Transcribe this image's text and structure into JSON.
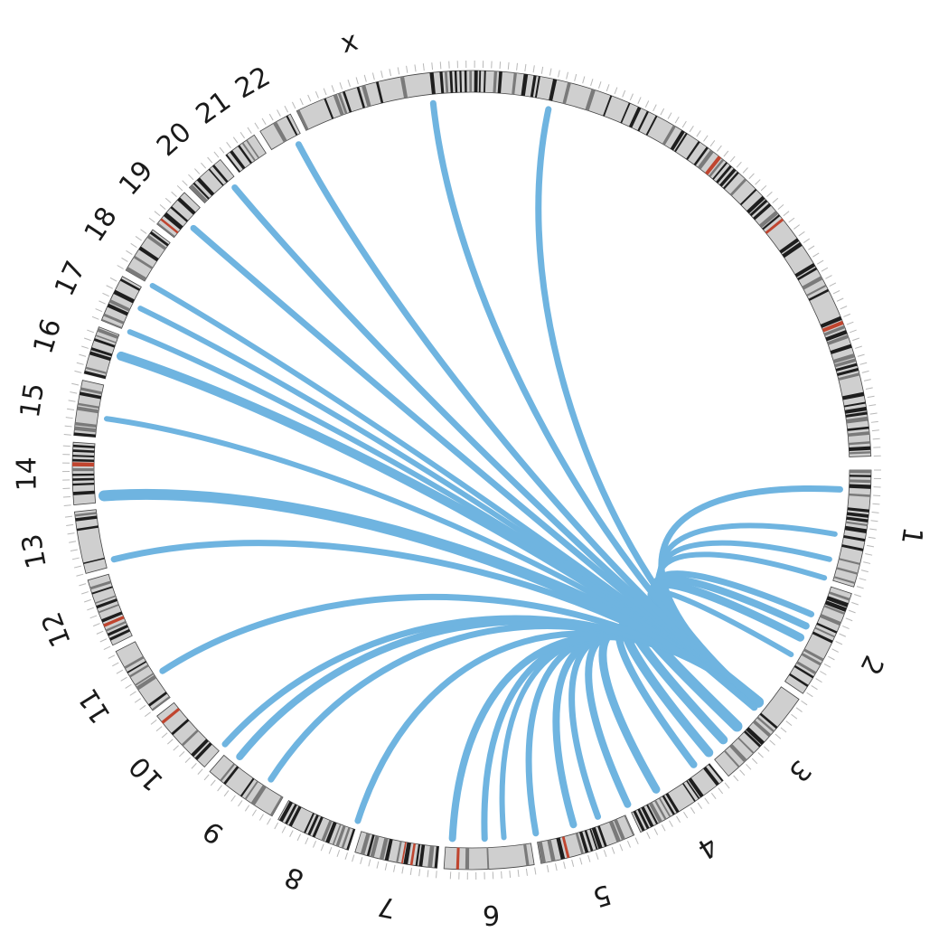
{
  "chart_data": {
    "type": "chord",
    "ring_order": [
      "1",
      "2",
      "3",
      "4",
      "5",
      "6",
      "7",
      "8",
      "9",
      "10",
      "11",
      "12",
      "13",
      "14",
      "15",
      "16",
      "17",
      "18",
      "19",
      "20",
      "21",
      "22",
      "x"
    ],
    "chromosomes": [
      {
        "label": "1",
        "start": 90,
        "end": 107
      },
      {
        "label": "2",
        "start": 108,
        "end": 124
      },
      {
        "label": "3",
        "start": 125,
        "end": 140
      },
      {
        "label": "4",
        "start": 141,
        "end": 155
      },
      {
        "label": "5",
        "start": 156,
        "end": 170
      },
      {
        "label": "6",
        "start": 171,
        "end": 184
      },
      {
        "label": "7",
        "start": 185,
        "end": 197
      },
      {
        "label": "8",
        "start": 198,
        "end": 209
      },
      {
        "label": "9",
        "start": 210,
        "end": 221
      },
      {
        "label": "10",
        "start": 222,
        "end": 232
      },
      {
        "label": "11",
        "start": 233,
        "end": 243
      },
      {
        "label": "12",
        "start": 244,
        "end": 254
      },
      {
        "label": "13",
        "start": 255,
        "end": 264
      },
      {
        "label": "14",
        "start": 265,
        "end": 274
      },
      {
        "label": "15",
        "start": 275,
        "end": 283
      },
      {
        "label": "16",
        "start": 284,
        "end": 291
      },
      {
        "label": "17",
        "start": 292,
        "end": 299
      },
      {
        "label": "18",
        "start": 300,
        "end": 307
      },
      {
        "label": "19",
        "start": 308,
        "end": 314
      },
      {
        "label": "20",
        "start": 315,
        "end": 321
      },
      {
        "label": "21",
        "start": 322,
        "end": 327
      },
      {
        "label": "22",
        "start": 328,
        "end": 333
      },
      {
        "label": "x",
        "start": 334,
        "end": 448
      }
    ],
    "hub_angle": 129,
    "links": [
      {
        "to": 93,
        "w": 7
      },
      {
        "to": 100,
        "w": 6
      },
      {
        "to": 104,
        "w": 6
      },
      {
        "to": 107,
        "w": 6
      },
      {
        "to": 113,
        "w": 7
      },
      {
        "to": 115,
        "w": 8
      },
      {
        "to": 117,
        "w": 9
      },
      {
        "to": 120,
        "w": 6
      },
      {
        "to": 130,
        "w": 8
      },
      {
        "to": 134,
        "w": 12
      },
      {
        "to": 137,
        "w": 10
      },
      {
        "to": 140,
        "w": 10
      },
      {
        "to": 143,
        "w": 8
      },
      {
        "to": 150,
        "w": 9
      },
      {
        "to": 155,
        "w": 8
      },
      {
        "to": 160,
        "w": 7
      },
      {
        "to": 164,
        "w": 8
      },
      {
        "to": 170,
        "w": 7
      },
      {
        "to": 175,
        "w": 6
      },
      {
        "to": 178,
        "w": 7
      },
      {
        "to": 183,
        "w": 8
      },
      {
        "to": 198,
        "w": 7
      },
      {
        "to": 213,
        "w": 7
      },
      {
        "to": 219,
        "w": 8
      },
      {
        "to": 222,
        "w": 7
      },
      {
        "to": 237,
        "w": 7
      },
      {
        "to": 256,
        "w": 7
      },
      {
        "to": 266,
        "w": 12
      },
      {
        "to": 278,
        "w": 6
      },
      {
        "to": 288,
        "w": 10
      },
      {
        "to": 292,
        "w": 6
      },
      {
        "to": 296,
        "w": 6
      },
      {
        "to": 300,
        "w": 6
      },
      {
        "to": 311,
        "w": 7
      },
      {
        "to": 320,
        "w": 7
      },
      {
        "to": 332,
        "w": 7
      },
      {
        "to": 354,
        "w": 7
      },
      {
        "to": 372,
        "w": 7
      }
    ],
    "colors": {
      "link": "#6fb4e0",
      "band_dark": "#1e1e1e",
      "band_mid": "#7a7a7a",
      "band_light": "#cfcfcf",
      "centromere": "#c0452f",
      "ring_outline": "#444444"
    }
  }
}
